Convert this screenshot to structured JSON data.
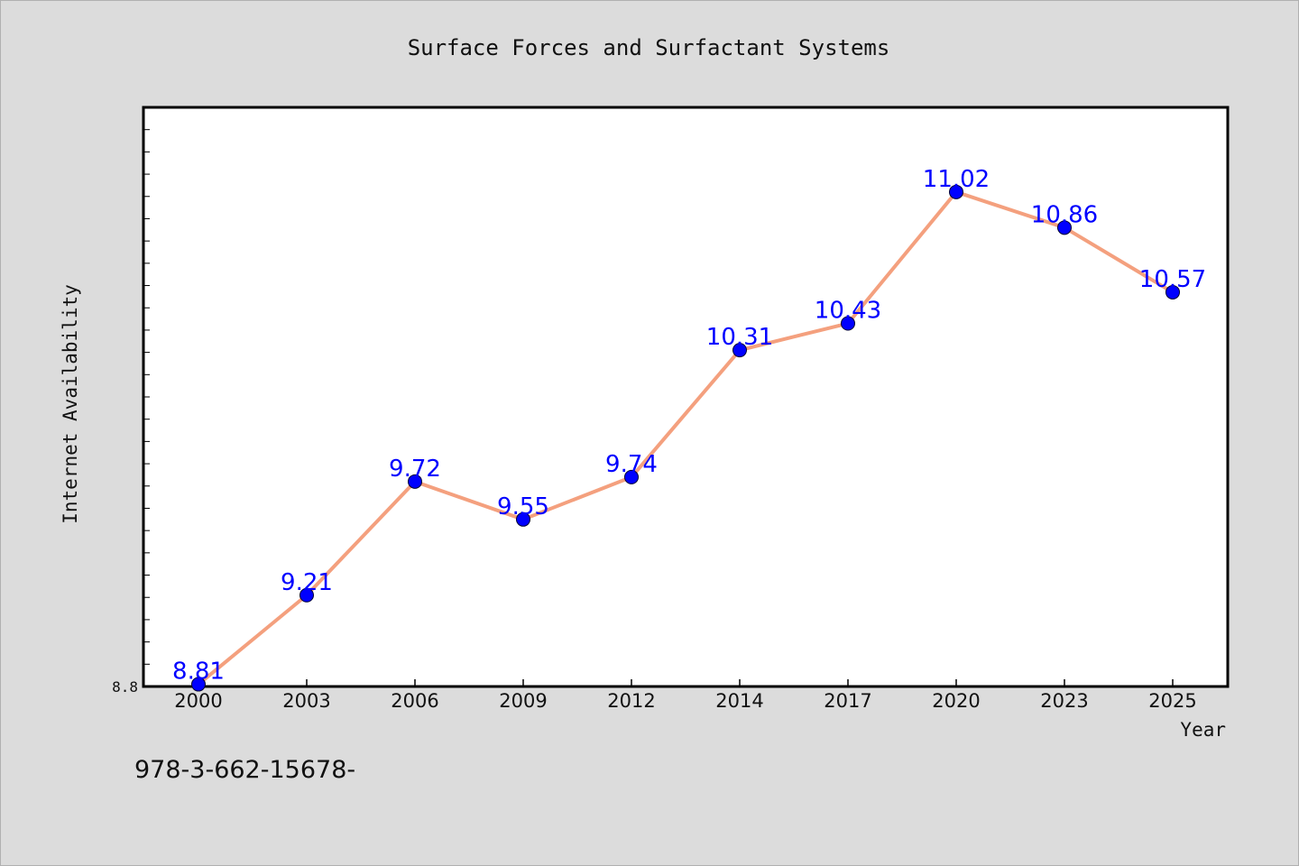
{
  "chart_data": {
    "type": "line",
    "title": "Surface Forces and Surfactant Systems",
    "xlabel": "Year",
    "ylabel": "Internet Availability",
    "categories": [
      "2000",
      "2003",
      "2006",
      "2009",
      "2012",
      "2014",
      "2017",
      "2020",
      "2023",
      "2025"
    ],
    "series": [
      {
        "values": [
          8.81,
          9.21,
          9.72,
          9.55,
          9.74,
          10.31,
          10.43,
          11.02,
          10.86,
          10.57
        ],
        "line_color": "#f4a07e",
        "marker_color": "#0000ff"
      }
    ],
    "ylim": [
      8.8,
      11.4
    ],
    "y_tick_labels": [
      "8.8"
    ],
    "grid": false,
    "plot_background": "#ffffff",
    "figure_background": "#dcdcdc"
  },
  "footer": {
    "text": "978-3-662-15678-"
  }
}
